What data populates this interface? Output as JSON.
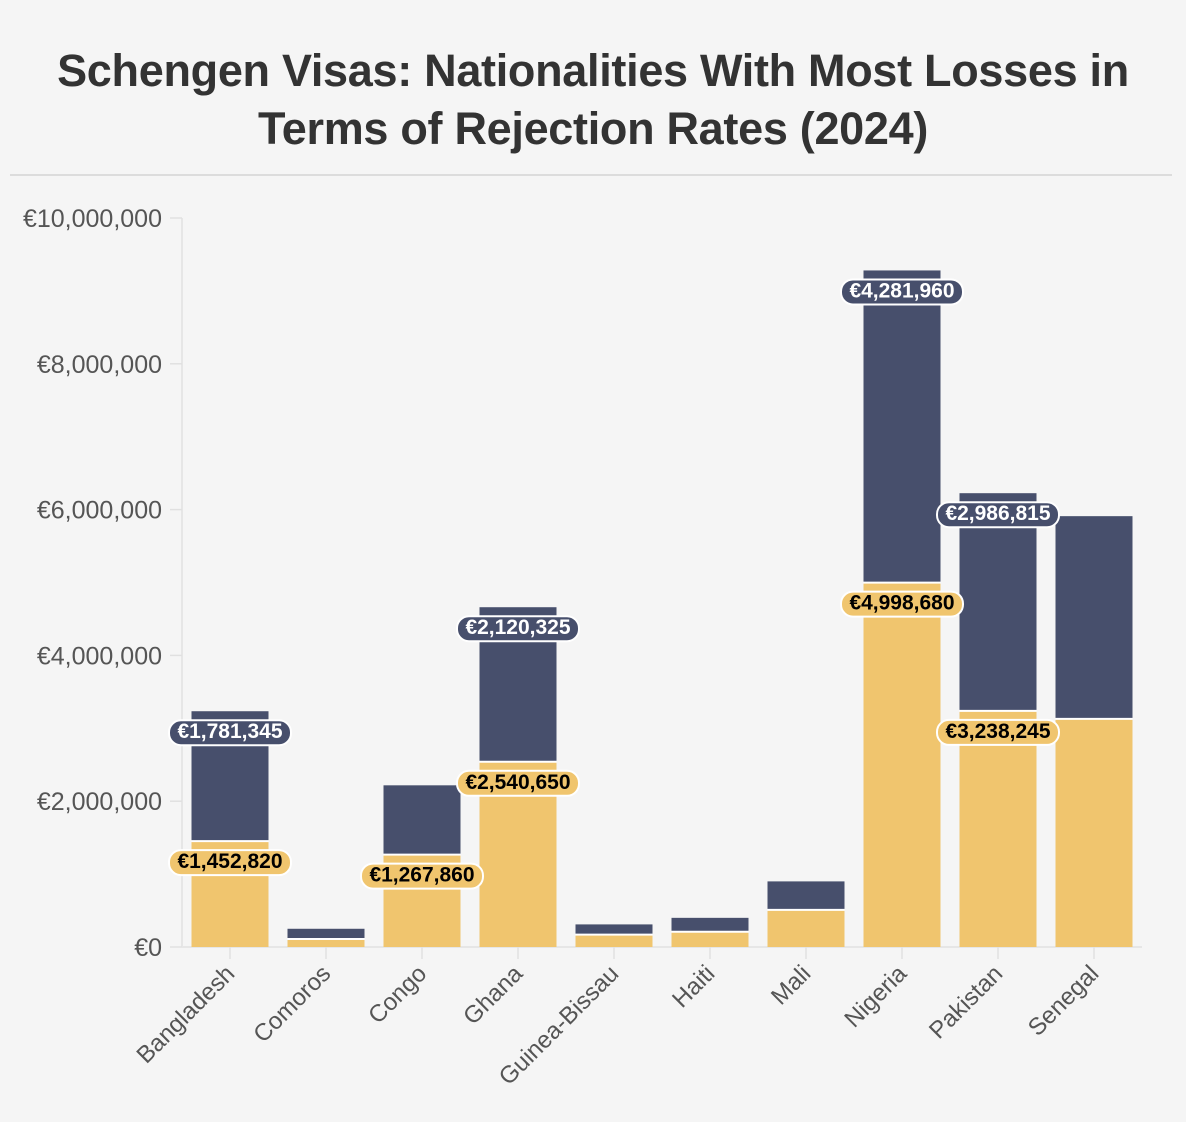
{
  "title_lines": [
    "Schengen Visas: Nationalities With Most Losses in",
    "Terms of Rejection Rates (2024)"
  ],
  "chart_data": {
    "type": "bar",
    "stacked": true,
    "title": "Schengen Visas: Nationalities With Most Losses in Terms of Rejection Rates (2024)",
    "categories": [
      "Bangladesh",
      "Comoros",
      "Congo",
      "Ghana",
      "Guinea-Bissau",
      "Haiti",
      "Mali",
      "Nigeria",
      "Pakistan",
      "Senegal"
    ],
    "series": [
      {
        "color": "#f0c56e",
        "label_color": "#000000",
        "values": [
          1452820,
          110000,
          1267860,
          2540650,
          170000,
          210000,
          510000,
          4998680,
          3238245,
          3130000
        ],
        "labels": [
          "€1,452,820",
          null,
          "€1,267,860",
          "€2,540,650",
          null,
          null,
          null,
          "€4,998,680",
          "€3,238,245",
          null
        ]
      },
      {
        "color": "#474f6c",
        "label_color": "#ffffff",
        "values": [
          1781345,
          140000,
          950000,
          2120325,
          140000,
          190000,
          390000,
          4281960,
          2986815,
          2780000
        ],
        "labels": [
          "€1,781,345",
          null,
          null,
          "€2,120,325",
          null,
          null,
          null,
          "€4,281,960",
          "€2,986,815",
          null
        ]
      }
    ],
    "y_ticks": [
      0,
      2000000,
      4000000,
      6000000,
      8000000,
      10000000
    ],
    "y_tick_labels": [
      "€0",
      "€2,000,000",
      "€4,000,000",
      "€6,000,000",
      "€8,000,000",
      "€10,000,000"
    ],
    "ylim": [
      0,
      10000000
    ],
    "xlabel": "",
    "ylabel": "",
    "grid": false,
    "legend": "none"
  }
}
